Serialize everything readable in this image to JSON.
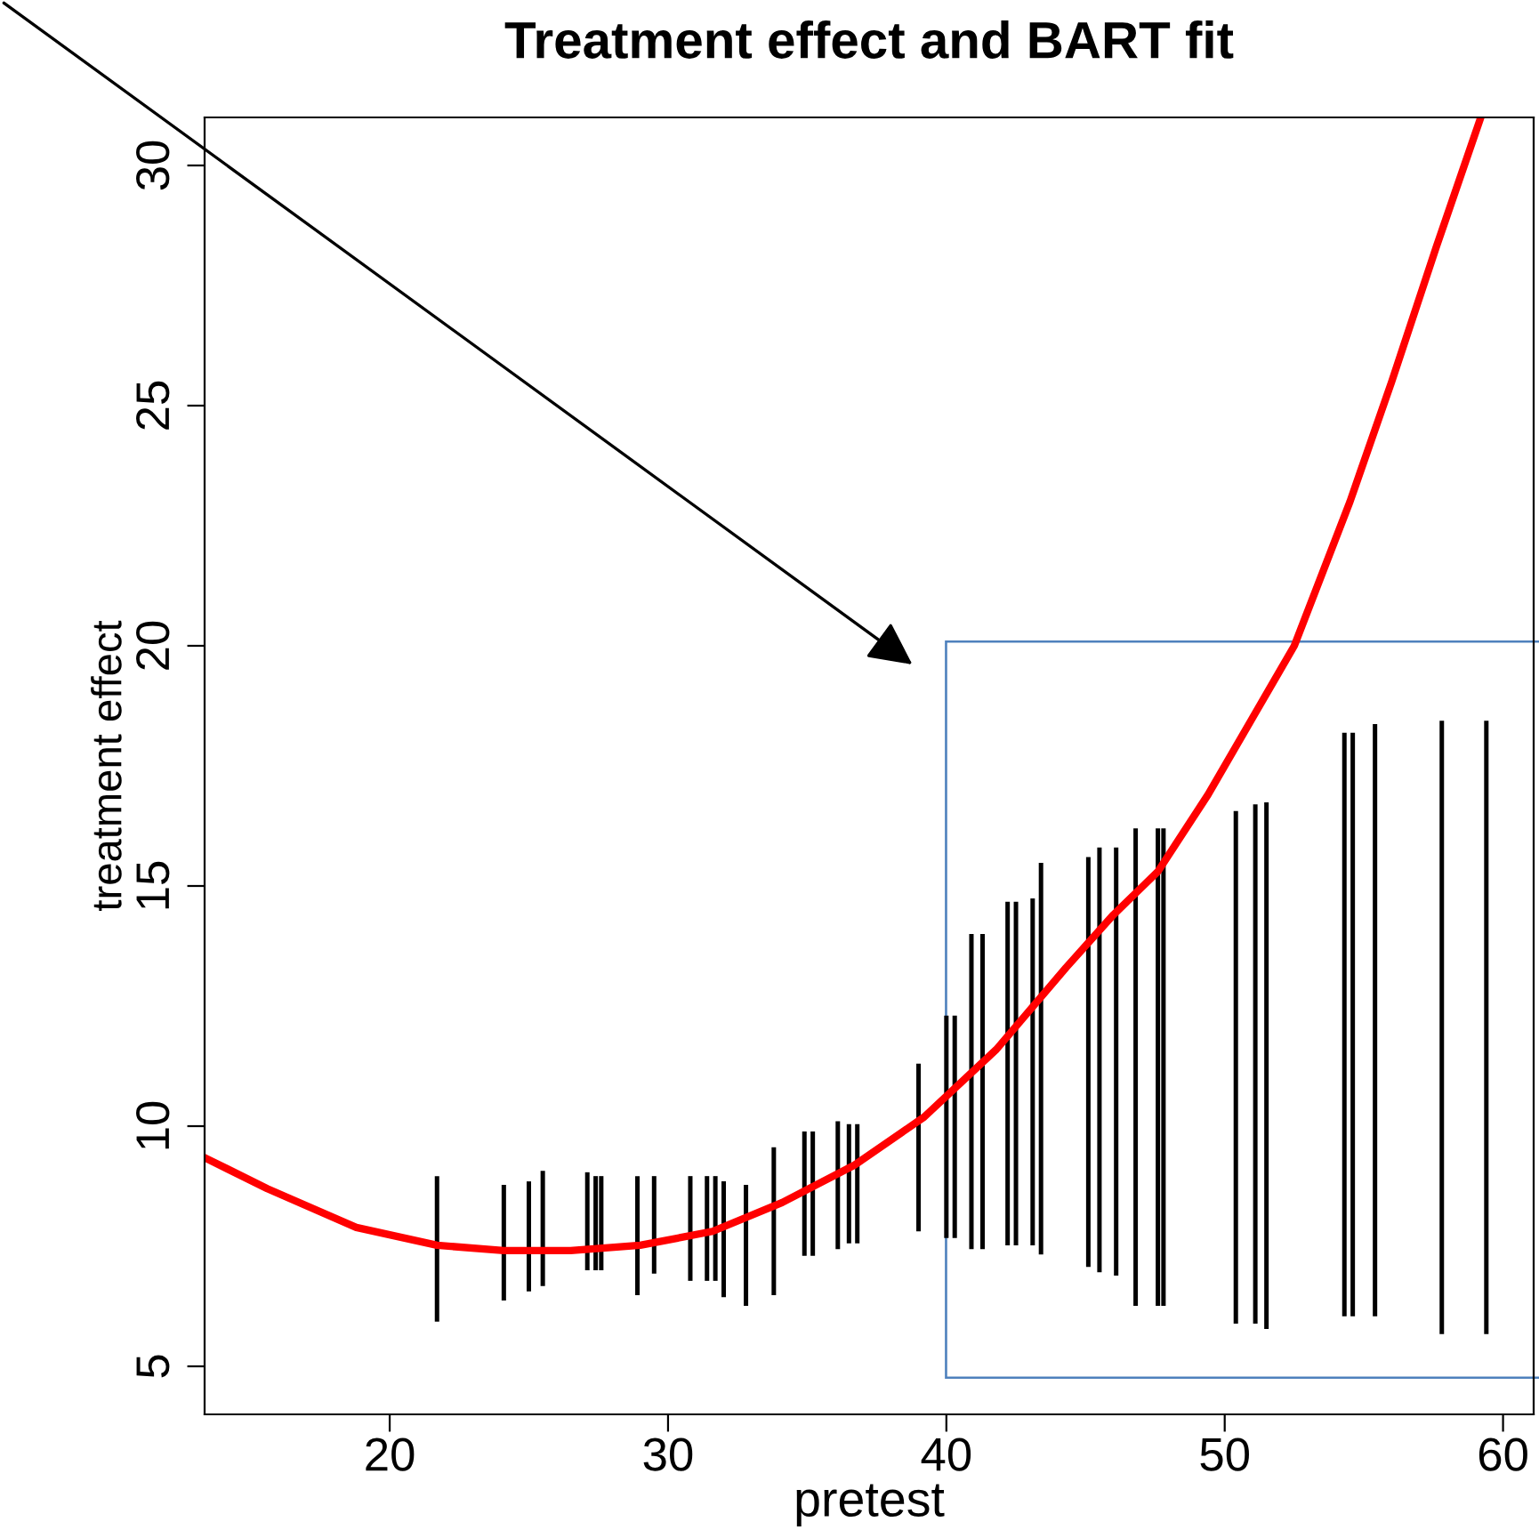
{
  "chart_data": {
    "type": "bar",
    "title": "Treatment effect and BART fit",
    "xlabel": "pretest",
    "ylabel": "treatment effect",
    "xlim": [
      13.35,
      61.1
    ],
    "ylim": [
      4.0,
      31.0
    ],
    "xticks": [
      20,
      30,
      40,
      50,
      60
    ],
    "yticks": [
      5,
      10,
      15,
      20,
      25,
      30
    ],
    "grid": false,
    "legend": false,
    "series": [
      {
        "type": "bar",
        "color": "#000000",
        "x": [
          21.7,
          24.1,
          25.0,
          25.5,
          27.1,
          27.4,
          27.6,
          28.9,
          29.5,
          30.8,
          31.4,
          31.7,
          32.0,
          32.8,
          33.8,
          34.9,
          35.2,
          36.1,
          36.5,
          36.8,
          39.0,
          40.0,
          40.3,
          40.9,
          41.3,
          42.2,
          42.5,
          43.1,
          43.4,
          45.1,
          45.5,
          46.1,
          46.8,
          47.6,
          47.8,
          50.4,
          51.1,
          51.5,
          54.3,
          54.6,
          55.4,
          57.8,
          59.4
        ],
        "base": [
          5.93,
          6.37,
          6.56,
          6.67,
          7.0,
          7.0,
          7.0,
          6.48,
          6.93,
          6.78,
          6.78,
          6.78,
          6.44,
          6.26,
          6.48,
          7.3,
          7.3,
          7.44,
          7.56,
          7.56,
          7.81,
          7.67,
          7.67,
          7.44,
          7.44,
          7.52,
          7.52,
          7.52,
          7.33,
          7.07,
          6.96,
          6.89,
          6.26,
          6.26,
          6.26,
          5.89,
          5.89,
          5.78,
          6.04,
          6.04,
          6.04,
          5.67,
          5.67
        ],
        "values": [
          3.03,
          2.41,
          2.29,
          2.4,
          2.04,
          1.96,
          1.96,
          2.48,
          2.03,
          2.18,
          2.18,
          2.18,
          2.41,
          2.52,
          3.08,
          2.59,
          2.59,
          2.66,
          2.48,
          2.48,
          3.49,
          4.63,
          4.63,
          6.56,
          6.56,
          7.15,
          7.15,
          7.22,
          8.15,
          8.53,
          8.84,
          8.91,
          9.94,
          9.94,
          9.94,
          10.67,
          10.81,
          10.96,
          12.15,
          12.15,
          12.33,
          12.77,
          12.77
        ]
      },
      {
        "type": "line",
        "color": "#ff0000",
        "x": [
          13.4,
          15.6,
          18.8,
          21.7,
          24.1,
          26.5,
          29.0,
          31.6,
          34.1,
          36.7,
          39.2,
          41.8,
          44.3,
          46.0,
          47.6,
          49.4,
          51.0,
          52.5,
          54.5,
          56.0,
          57.6,
          59.2
        ],
        "values": [
          9.33,
          8.7,
          7.89,
          7.52,
          7.41,
          7.41,
          7.52,
          7.81,
          8.41,
          9.19,
          10.19,
          11.6,
          13.3,
          14.4,
          15.3,
          16.9,
          18.5,
          20.0,
          23.0,
          25.5,
          28.3,
          31.0
        ]
      }
    ]
  }
}
